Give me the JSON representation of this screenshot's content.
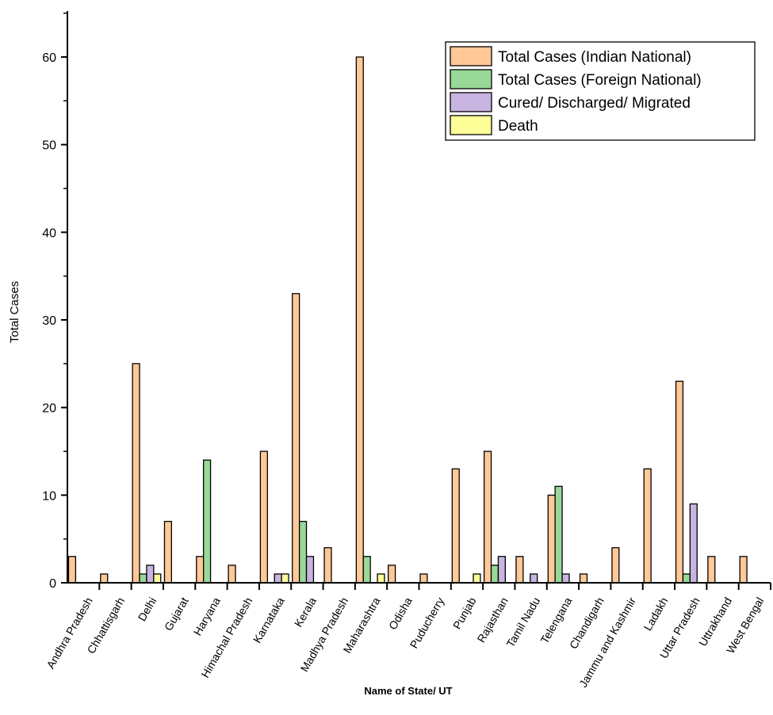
{
  "chart_data": {
    "type": "bar",
    "xlabel": "Name of State/ UT",
    "ylabel": "Total Cases",
    "ylim": [
      0,
      65
    ],
    "yticks": [
      0,
      10,
      20,
      30,
      40,
      50,
      60
    ],
    "ytick_labels": [
      "0",
      "10",
      "20",
      "30",
      "40",
      "50",
      "60"
    ],
    "legend_position": "top-right",
    "grid": false,
    "categories": [
      "Andhra Pradesh",
      "Chhattisgarh",
      "Delhi",
      "Gujarat",
      "Haryana",
      "Himachal Pradesh",
      "Karnataka",
      "Kerala",
      "Madhya Pradesh",
      "Maharashtra",
      "Odisha",
      "Puducherry",
      "Punjab",
      "Rajasthan",
      "Tamil Nadu",
      "Telengana",
      "Chandigarh",
      "Jammu and Kashmir",
      "Ladakh",
      "Uttar Pradesh",
      "Uttrakhand",
      "West Bengal"
    ],
    "series": [
      {
        "name": "Total Cases (Indian National)",
        "color": "#FFC896",
        "values": [
          3,
          1,
          25,
          7,
          3,
          2,
          15,
          33,
          4,
          60,
          2,
          1,
          13,
          15,
          3,
          10,
          1,
          4,
          13,
          23,
          3,
          3
        ]
      },
      {
        "name": "Total Cases (Foreign National)",
        "color": "#98D898",
        "values": [
          0,
          0,
          1,
          0,
          14,
          0,
          0,
          7,
          0,
          3,
          0,
          0,
          0,
          2,
          0,
          11,
          0,
          0,
          0,
          1,
          0,
          0
        ]
      },
      {
        "name": "Cured/ Discharged/ Migrated",
        "color": "#C8B4E0",
        "values": [
          0,
          0,
          2,
          0,
          0,
          0,
          1,
          3,
          0,
          0,
          0,
          0,
          0,
          3,
          1,
          1,
          0,
          0,
          0,
          9,
          0,
          0
        ]
      },
      {
        "name": "Death",
        "color": "#FFFF99",
        "values": [
          0,
          0,
          1,
          0,
          0,
          0,
          1,
          0,
          0,
          1,
          0,
          0,
          1,
          0,
          0,
          0,
          0,
          0,
          0,
          0,
          0,
          0
        ]
      }
    ]
  }
}
